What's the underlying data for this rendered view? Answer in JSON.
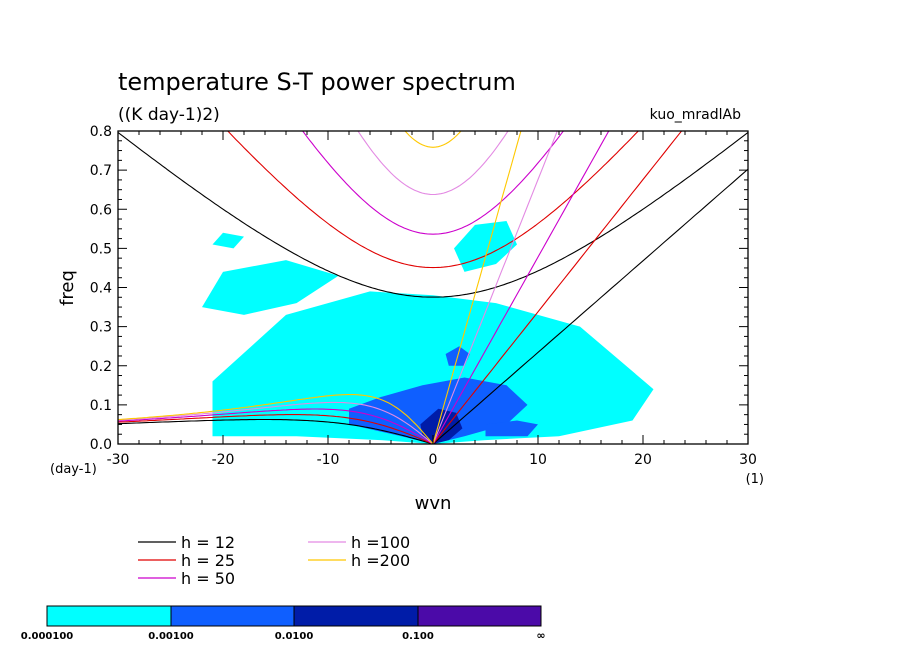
{
  "title": "temperature S-T power spectrum",
  "subtitle": "((K day-1)2)",
  "run_label": "kuo_mradlAb",
  "colors": {
    "fill_levels": [
      "#00ffff",
      "#0f5fff",
      "#001ca8",
      "#4b0aa8"
    ],
    "h12": "#000000",
    "h25": "#e00000",
    "h50": "#cc00cc",
    "h100": "#e38ae3",
    "h200": "#ffc800"
  },
  "chart_data": {
    "type": "heatmap",
    "xlabel": "wvn",
    "ylabel": "freq",
    "x_unit": "(1)",
    "y_unit": "(day-1)",
    "xlim": [
      -30,
      30
    ],
    "ylim": [
      0,
      0.8
    ],
    "x_ticks": [
      -30,
      -20,
      -10,
      0,
      10,
      20,
      30
    ],
    "y_ticks": [
      0.0,
      0.1,
      0.2,
      0.3,
      0.4,
      0.5,
      0.6,
      0.7,
      0.8
    ],
    "x_tick_labels": [
      "-30",
      "-20",
      "-10",
      "0",
      "10",
      "20",
      "30"
    ],
    "y_tick_labels": [
      "0.0",
      "0.1",
      "0.2",
      "0.3",
      "0.4",
      "0.5",
      "0.6",
      "0.7",
      "0.8"
    ],
    "contour_levels": [
      "0.000100",
      "0.00100",
      "0.0100",
      "0.100",
      "∞"
    ],
    "dispersion_series": [
      {
        "name": "h = 12",
        "equivalent_depth_m": 12
      },
      {
        "name": "h = 25",
        "equivalent_depth_m": 25
      },
      {
        "name": "h = 50",
        "equivalent_depth_m": 50
      },
      {
        "name": "h =100",
        "equivalent_depth_m": 100
      },
      {
        "name": "h =200",
        "equivalent_depth_m": 200
      }
    ],
    "power_regions": [
      {
        "level": 1,
        "k": [
          -21,
          -13,
          -5,
          0,
          5,
          12,
          19,
          21,
          14,
          6,
          0,
          -6,
          -14,
          -21
        ],
        "f": [
          0.02,
          0.02,
          0.01,
          0.0,
          0.01,
          0.02,
          0.06,
          0.14,
          0.3,
          0.36,
          0.38,
          0.39,
          0.33,
          0.16
        ]
      },
      {
        "level": 1,
        "k": [
          -22,
          -18,
          -13,
          -9,
          -14,
          -20
        ],
        "f": [
          0.35,
          0.33,
          0.36,
          0.43,
          0.47,
          0.44
        ]
      },
      {
        "level": 1,
        "k": [
          3,
          6,
          8,
          7,
          4,
          2
        ],
        "f": [
          0.44,
          0.46,
          0.51,
          0.57,
          0.56,
          0.5
        ]
      },
      {
        "level": 1,
        "k": [
          -21,
          -19,
          -18,
          -20
        ],
        "f": [
          0.51,
          0.5,
          0.53,
          0.54
        ]
      },
      {
        "level": 1,
        "k": [
          -5,
          -2,
          -1,
          -4
        ],
        "f": [
          0.06,
          0.04,
          0.07,
          0.09
        ]
      },
      {
        "level": 2,
        "k": [
          -8,
          -3,
          0,
          3,
          7,
          9,
          7,
          3,
          -1,
          -5,
          -8
        ],
        "f": [
          0.05,
          0.02,
          0.0,
          0.02,
          0.05,
          0.1,
          0.15,
          0.17,
          0.15,
          0.12,
          0.09
        ]
      },
      {
        "level": 2,
        "k": [
          1.5,
          3,
          3.5,
          2.5,
          1.2
        ],
        "f": [
          0.2,
          0.2,
          0.23,
          0.25,
          0.23
        ]
      },
      {
        "level": 2,
        "k": [
          5,
          9,
          10,
          8,
          5
        ],
        "f": [
          0.02,
          0.02,
          0.05,
          0.06,
          0.05
        ]
      },
      {
        "level": 3,
        "k": [
          -1,
          0,
          1.5,
          2.8,
          2.2,
          0.5,
          -1.2
        ],
        "f": [
          0.02,
          0.0,
          0.01,
          0.04,
          0.08,
          0.09,
          0.05
        ]
      }
    ]
  },
  "legend": {
    "items": [
      {
        "label": "h = 12",
        "color": "#000000"
      },
      {
        "label": "h = 25",
        "color": "#e00000"
      },
      {
        "label": "h = 50",
        "color": "#cc00cc"
      },
      {
        "label": "h =100",
        "color": "#e38ae3"
      },
      {
        "label": "h =200",
        "color": "#ffc800"
      }
    ]
  }
}
